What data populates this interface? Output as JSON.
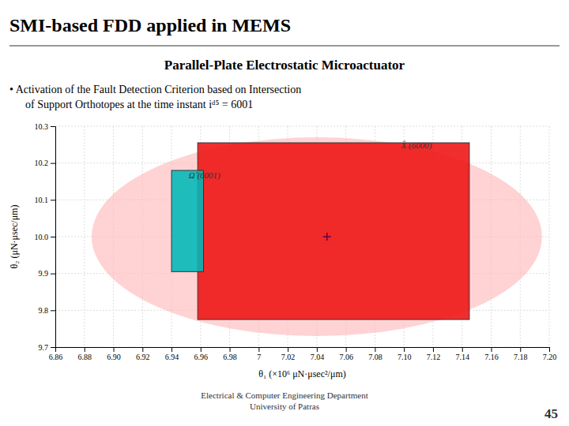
{
  "chart_data": {
    "type": "shapes",
    "title": "SMI-based FDD applied in MEMS",
    "subtitle": "Parallel-Plate Electrostatic Microactuator",
    "text": [
      "•  Activation of the Fault Detection Criterion based on Intersection",
      "of Support Orthotopes at the time instant iᵈ⁵ = 6001"
    ],
    "footer": [
      "Electrical & Computer Engineering Department",
      "University of Patras"
    ],
    "page_number": "45",
    "xlabel": "θ₁ (×10⁶ μN·μsec²/μm)",
    "ylabel": "θ₂ (μN·μsec/μm)",
    "xlim": [
      6.86,
      7.2
    ],
    "ylim": [
      9.7,
      10.3
    ],
    "xticks": [
      6.86,
      6.88,
      {
        "value": 6.9,
        "label": "6.90"
      },
      6.92,
      6.94,
      6.96,
      6.98,
      7.0,
      7.02,
      7.04,
      7.06,
      7.08,
      {
        "value": 7.1,
        "label": "7.10"
      },
      7.12,
      7.14,
      7.16,
      7.18,
      {
        "value": 7.2,
        "label": "7.20"
      }
    ],
    "yticks": [
      9.7,
      9.8,
      9.9,
      {
        "value": 10.0,
        "label": "10.0"
      },
      10.1,
      10.2,
      10.3
    ],
    "grid": true,
    "ellipses": [
      {
        "center_x": 7.04,
        "center_y": 10.0,
        "rx": 0.155,
        "ry": 0.27,
        "color": "#FFBBBB"
      }
    ],
    "rectangles": [
      {
        "x": 6.958,
        "y": 9.775,
        "width": 0.187,
        "height": 0.48,
        "color": "#EE1111"
      },
      {
        "x": 6.94,
        "y": 9.905,
        "width": 0.022,
        "height": 0.275,
        "color": "#00B8B8"
      }
    ],
    "points": [
      {
        "x": 7.047,
        "y": 10.0,
        "marker": "plus",
        "color": "#660044"
      }
    ],
    "annotations": [
      "X̂ (6000)",
      "Ω̂ (6001)"
    ]
  }
}
